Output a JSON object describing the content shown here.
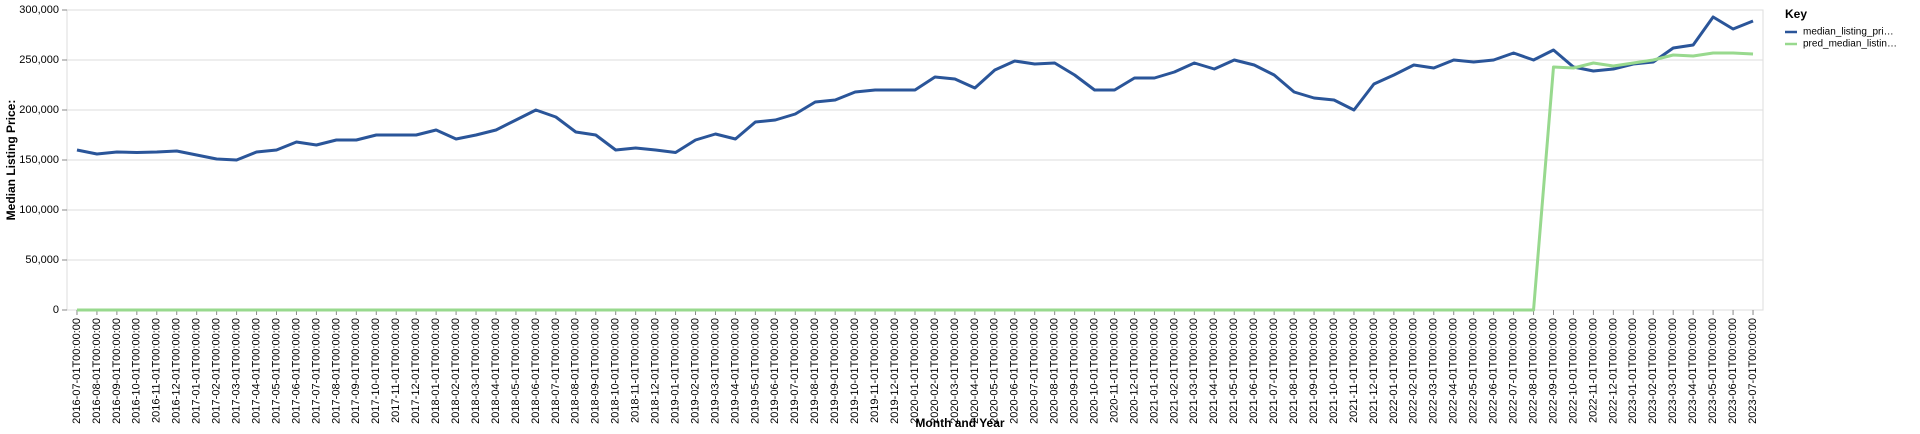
{
  "chart_data": {
    "type": "line",
    "x_label": "Month and Year",
    "y_label": "Median Listing Price:",
    "legend_title": "Key",
    "legend_position": "right",
    "grid": true,
    "categories": [
      "2016-07-01T00:00:00",
      "2016-08-01T00:00:00",
      "2016-09-01T00:00:00",
      "2016-10-01T00:00:00",
      "2016-11-01T00:00:00",
      "2016-12-01T00:00:00",
      "2017-01-01T00:00:00",
      "2017-02-01T00:00:00",
      "2017-03-01T00:00:00",
      "2017-04-01T00:00:00",
      "2017-05-01T00:00:00",
      "2017-06-01T00:00:00",
      "2017-07-01T00:00:00",
      "2017-08-01T00:00:00",
      "2017-09-01T00:00:00",
      "2017-10-01T00:00:00",
      "2017-11-01T00:00:00",
      "2017-12-01T00:00:00",
      "2018-01-01T00:00:00",
      "2018-02-01T00:00:00",
      "2018-03-01T00:00:00",
      "2018-04-01T00:00:00",
      "2018-05-01T00:00:00",
      "2018-06-01T00:00:00",
      "2018-07-01T00:00:00",
      "2018-08-01T00:00:00",
      "2018-09-01T00:00:00",
      "2018-10-01T00:00:00",
      "2018-11-01T00:00:00",
      "2018-12-01T00:00:00",
      "2019-01-01T00:00:00",
      "2019-02-01T00:00:00",
      "2019-03-01T00:00:00",
      "2019-04-01T00:00:00",
      "2019-05-01T00:00:00",
      "2019-06-01T00:00:00",
      "2019-07-01T00:00:00",
      "2019-08-01T00:00:00",
      "2019-09-01T00:00:00",
      "2019-10-01T00:00:00",
      "2019-11-01T00:00:00",
      "2019-12-01T00:00:00",
      "2020-01-01T00:00:00",
      "2020-02-01T00:00:00",
      "2020-03-01T00:00:00",
      "2020-04-01T00:00:00",
      "2020-05-01T00:00:00",
      "2020-06-01T00:00:00",
      "2020-07-01T00:00:00",
      "2020-08-01T00:00:00",
      "2020-09-01T00:00:00",
      "2020-10-01T00:00:00",
      "2020-11-01T00:00:00",
      "2020-12-01T00:00:00",
      "2021-01-01T00:00:00",
      "2021-02-01T00:00:00",
      "2021-03-01T00:00:00",
      "2021-04-01T00:00:00",
      "2021-05-01T00:00:00",
      "2021-06-01T00:00:00",
      "2021-07-01T00:00:00",
      "2021-08-01T00:00:00",
      "2021-09-01T00:00:00",
      "2021-10-01T00:00:00",
      "2021-11-01T00:00:00",
      "2021-12-01T00:00:00",
      "2022-01-01T00:00:00",
      "2022-02-01T00:00:00",
      "2022-03-01T00:00:00",
      "2022-04-01T00:00:00",
      "2022-05-01T00:00:00",
      "2022-06-01T00:00:00",
      "2022-07-01T00:00:00",
      "2022-08-01T00:00:00",
      "2022-09-01T00:00:00",
      "2022-10-01T00:00:00",
      "2022-11-01T00:00:00",
      "2022-12-01T00:00:00",
      "2023-01-01T00:00:00",
      "2023-02-01T00:00:00",
      "2023-03-01T00:00:00",
      "2023-04-01T00:00:00",
      "2023-05-01T00:00:00",
      "2023-06-01T00:00:00",
      "2023-07-01T00:00:00"
    ],
    "series": [
      {
        "name": "median_listing_pri…",
        "color": "#2a5599",
        "values": [
          160000,
          156000,
          158000,
          157500,
          158000,
          159000,
          155000,
          151000,
          150000,
          158000,
          160000,
          168000,
          165000,
          170000,
          170000,
          175000,
          175000,
          175000,
          180000,
          171000,
          175000,
          180000,
          190000,
          200000,
          193000,
          178000,
          175000,
          160000,
          162000,
          160000,
          157500,
          170000,
          176000,
          171000,
          188000,
          190000,
          196000,
          208000,
          210000,
          218000,
          220000,
          220000,
          220000,
          233000,
          231000,
          222000,
          240000,
          249000,
          246000,
          247000,
          235000,
          220000,
          220000,
          232000,
          232000,
          238000,
          247000,
          241000,
          250000,
          245000,
          235000,
          218000,
          212000,
          210000,
          200000,
          226000,
          235000,
          245000,
          242000,
          250000,
          248000,
          250000,
          257000,
          250000,
          260000,
          243000,
          239000,
          241000,
          246000,
          248000,
          262000,
          265000,
          293000,
          281000,
          289000
        ]
      },
      {
        "name": "pred_median_listin…",
        "color": "#98d98e",
        "values": [
          0,
          0,
          0,
          0,
          0,
          0,
          0,
          0,
          0,
          0,
          0,
          0,
          0,
          0,
          0,
          0,
          0,
          0,
          0,
          0,
          0,
          0,
          0,
          0,
          0,
          0,
          0,
          0,
          0,
          0,
          0,
          0,
          0,
          0,
          0,
          0,
          0,
          0,
          0,
          0,
          0,
          0,
          0,
          0,
          0,
          0,
          0,
          0,
          0,
          0,
          0,
          0,
          0,
          0,
          0,
          0,
          0,
          0,
          0,
          0,
          0,
          0,
          0,
          0,
          0,
          0,
          0,
          0,
          0,
          0,
          0,
          0,
          0,
          0,
          243000,
          242000,
          247000,
          244000,
          247000,
          250000,
          255000,
          254000,
          257000,
          257000,
          256000
        ]
      }
    ],
    "ylim": [
      0,
      300000
    ],
    "yticks": [
      {
        "value": 0,
        "label": "0"
      },
      {
        "value": 50000,
        "label": "50,000"
      },
      {
        "value": 100000,
        "label": "100,000"
      },
      {
        "value": 150000,
        "label": "150,000"
      },
      {
        "value": 200000,
        "label": "200,000"
      },
      {
        "value": 250000,
        "label": "250,000"
      },
      {
        "value": 300000,
        "label": "300,000"
      }
    ]
  }
}
